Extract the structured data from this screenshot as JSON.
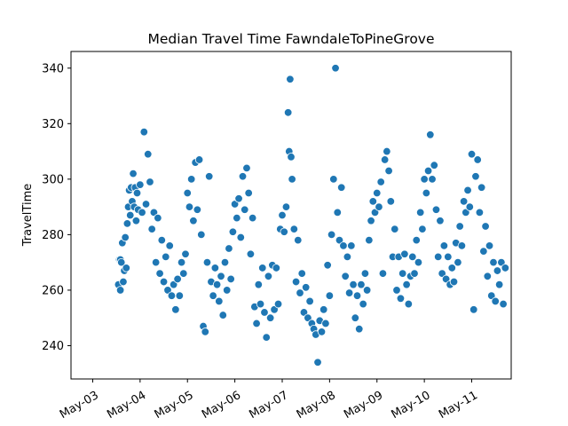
{
  "chart_data": {
    "type": "scatter",
    "title": "Median Travel Time FawndaleToPineGrove",
    "xlabel": "",
    "ylabel": "TravelTime",
    "x_axis": "date",
    "xlim": [
      "2016-05-02T13:00",
      "2016-05-11T20:00"
    ],
    "ylim": [
      228,
      346
    ],
    "x_ticks": [
      "2016-05-03",
      "2016-05-04",
      "2016-05-05",
      "2016-05-06",
      "2016-05-07",
      "2016-05-08",
      "2016-05-09",
      "2016-05-10",
      "2016-05-11"
    ],
    "x_tick_labels": [
      "May-03",
      "May-04",
      "May-05",
      "May-06",
      "May-07",
      "May-08",
      "May-09",
      "May-10",
      "May-11"
    ],
    "y_ticks": [
      240,
      260,
      280,
      300,
      320,
      340
    ],
    "y_tick_labels": [
      "240",
      "260",
      "280",
      "300",
      "320",
      "340"
    ],
    "marker_color": "#1f77b4",
    "marker_edge": "#ffffff",
    "grid": false,
    "legend": "none",
    "points": [
      [
        "2016-05-03T13:00",
        262
      ],
      [
        "2016-05-03T13:30",
        271
      ],
      [
        "2016-05-03T14:00",
        260
      ],
      [
        "2016-05-03T14:00",
        271
      ],
      [
        "2016-05-03T14:30",
        270
      ],
      [
        "2016-05-03T15:00",
        277
      ],
      [
        "2016-05-03T15:30",
        263
      ],
      [
        "2016-05-03T16:00",
        267
      ],
      [
        "2016-05-03T16:30",
        279
      ],
      [
        "2016-05-03T17:00",
        268
      ],
      [
        "2016-05-03T17:30",
        284
      ],
      [
        "2016-05-03T18:00",
        290
      ],
      [
        "2016-05-03T18:30",
        296
      ],
      [
        "2016-05-03T19:00",
        287
      ],
      [
        "2016-05-03T19:30",
        297
      ],
      [
        "2016-05-03T20:00",
        292
      ],
      [
        "2016-05-03T20:30",
        302
      ],
      [
        "2016-05-03T21:00",
        290
      ],
      [
        "2016-05-03T21:30",
        297
      ],
      [
        "2016-05-03T22:00",
        285
      ],
      [
        "2016-05-03T22:30",
        295
      ],
      [
        "2016-05-03T23:00",
        289
      ],
      [
        "2016-05-04T00:00",
        298
      ],
      [
        "2016-05-04T01:00",
        288
      ],
      [
        "2016-05-04T02:00",
        317
      ],
      [
        "2016-05-04T03:00",
        291
      ],
      [
        "2016-05-04T04:00",
        309
      ],
      [
        "2016-05-04T05:00",
        299
      ],
      [
        "2016-05-04T06:00",
        282
      ],
      [
        "2016-05-04T07:00",
        288
      ],
      [
        "2016-05-04T08:00",
        270
      ],
      [
        "2016-05-04T09:00",
        286
      ],
      [
        "2016-05-04T10:00",
        266
      ],
      [
        "2016-05-04T11:00",
        278
      ],
      [
        "2016-05-04T12:00",
        263
      ],
      [
        "2016-05-04T13:00",
        272
      ],
      [
        "2016-05-04T14:00",
        260
      ],
      [
        "2016-05-04T15:00",
        276
      ],
      [
        "2016-05-04T16:00",
        258
      ],
      [
        "2016-05-04T17:00",
        262
      ],
      [
        "2016-05-04T18:00",
        253
      ],
      [
        "2016-05-04T19:00",
        264
      ],
      [
        "2016-05-04T20:00",
        258
      ],
      [
        "2016-05-04T21:00",
        270
      ],
      [
        "2016-05-04T22:00",
        266
      ],
      [
        "2016-05-04T23:00",
        273
      ],
      [
        "2016-05-05T00:00",
        295
      ],
      [
        "2016-05-05T01:00",
        290
      ],
      [
        "2016-05-05T02:00",
        300
      ],
      [
        "2016-05-05T03:00",
        285
      ],
      [
        "2016-05-05T04:00",
        306
      ],
      [
        "2016-05-05T05:00",
        289
      ],
      [
        "2016-05-05T06:00",
        307
      ],
      [
        "2016-05-05T07:00",
        280
      ],
      [
        "2016-05-05T08:00",
        247
      ],
      [
        "2016-05-05T09:00",
        245
      ],
      [
        "2016-05-05T10:00",
        270
      ],
      [
        "2016-05-05T11:00",
        301
      ],
      [
        "2016-05-05T12:00",
        263
      ],
      [
        "2016-05-05T13:00",
        258
      ],
      [
        "2016-05-05T14:00",
        268
      ],
      [
        "2016-05-05T15:00",
        262
      ],
      [
        "2016-05-05T16:00",
        256
      ],
      [
        "2016-05-05T17:00",
        265
      ],
      [
        "2016-05-05T18:00",
        251
      ],
      [
        "2016-05-05T19:00",
        270
      ],
      [
        "2016-05-05T20:00",
        260
      ],
      [
        "2016-05-05T21:00",
        275
      ],
      [
        "2016-05-05T22:00",
        264
      ],
      [
        "2016-05-05T23:00",
        281
      ],
      [
        "2016-05-06T00:00",
        291
      ],
      [
        "2016-05-06T01:00",
        286
      ],
      [
        "2016-05-06T02:00",
        293
      ],
      [
        "2016-05-06T03:00",
        279
      ],
      [
        "2016-05-06T04:00",
        301
      ],
      [
        "2016-05-06T05:00",
        289
      ],
      [
        "2016-05-06T06:00",
        304
      ],
      [
        "2016-05-06T07:00",
        295
      ],
      [
        "2016-05-06T08:00",
        273
      ],
      [
        "2016-05-06T09:00",
        286
      ],
      [
        "2016-05-06T10:00",
        254
      ],
      [
        "2016-05-06T11:00",
        248
      ],
      [
        "2016-05-06T12:00",
        262
      ],
      [
        "2016-05-06T13:00",
        255
      ],
      [
        "2016-05-06T14:00",
        268
      ],
      [
        "2016-05-06T15:00",
        252
      ],
      [
        "2016-05-06T16:00",
        243
      ],
      [
        "2016-05-06T17:00",
        265
      ],
      [
        "2016-05-06T18:00",
        250
      ],
      [
        "2016-05-06T19:00",
        269
      ],
      [
        "2016-05-06T20:00",
        253
      ],
      [
        "2016-05-06T21:00",
        268
      ],
      [
        "2016-05-06T22:00",
        255
      ],
      [
        "2016-05-06T23:00",
        282
      ],
      [
        "2016-05-07T00:00",
        287
      ],
      [
        "2016-05-07T01:00",
        281
      ],
      [
        "2016-05-07T02:00",
        290
      ],
      [
        "2016-05-07T03:00",
        324
      ],
      [
        "2016-05-07T03:30",
        310
      ],
      [
        "2016-05-07T04:00",
        336
      ],
      [
        "2016-05-07T04:30",
        308
      ],
      [
        "2016-05-07T05:00",
        300
      ],
      [
        "2016-05-07T06:00",
        282
      ],
      [
        "2016-05-07T07:00",
        263
      ],
      [
        "2016-05-07T08:00",
        278
      ],
      [
        "2016-05-07T09:00",
        259
      ],
      [
        "2016-05-07T10:00",
        266
      ],
      [
        "2016-05-07T11:00",
        252
      ],
      [
        "2016-05-07T12:00",
        261
      ],
      [
        "2016-05-07T13:00",
        250
      ],
      [
        "2016-05-07T14:00",
        256
      ],
      [
        "2016-05-07T15:00",
        248
      ],
      [
        "2016-05-07T16:00",
        246
      ],
      [
        "2016-05-07T17:00",
        244
      ],
      [
        "2016-05-07T18:00",
        234
      ],
      [
        "2016-05-07T19:00",
        249
      ],
      [
        "2016-05-07T20:00",
        245
      ],
      [
        "2016-05-07T21:00",
        253
      ],
      [
        "2016-05-07T22:00",
        248
      ],
      [
        "2016-05-07T23:00",
        269
      ],
      [
        "2016-05-08T00:00",
        258
      ],
      [
        "2016-05-08T01:00",
        280
      ],
      [
        "2016-05-08T02:00",
        300
      ],
      [
        "2016-05-08T03:00",
        340
      ],
      [
        "2016-05-08T04:00",
        288
      ],
      [
        "2016-05-08T05:00",
        278
      ],
      [
        "2016-05-08T06:00",
        297
      ],
      [
        "2016-05-08T07:00",
        276
      ],
      [
        "2016-05-08T08:00",
        265
      ],
      [
        "2016-05-08T09:00",
        272
      ],
      [
        "2016-05-08T10:00",
        259
      ],
      [
        "2016-05-08T11:00",
        276
      ],
      [
        "2016-05-08T12:00",
        262
      ],
      [
        "2016-05-08T13:00",
        250
      ],
      [
        "2016-05-08T14:00",
        258
      ],
      [
        "2016-05-08T15:00",
        246
      ],
      [
        "2016-05-08T16:00",
        262
      ],
      [
        "2016-05-08T17:00",
        255
      ],
      [
        "2016-05-08T18:00",
        266
      ],
      [
        "2016-05-08T19:00",
        260
      ],
      [
        "2016-05-08T20:00",
        278
      ],
      [
        "2016-05-08T21:00",
        285
      ],
      [
        "2016-05-08T22:00",
        292
      ],
      [
        "2016-05-08T23:00",
        288
      ],
      [
        "2016-05-09T00:00",
        295
      ],
      [
        "2016-05-09T01:00",
        290
      ],
      [
        "2016-05-09T02:00",
        299
      ],
      [
        "2016-05-09T03:00",
        266
      ],
      [
        "2016-05-09T04:00",
        307
      ],
      [
        "2016-05-09T05:00",
        310
      ],
      [
        "2016-05-09T06:00",
        303
      ],
      [
        "2016-05-09T07:00",
        292
      ],
      [
        "2016-05-09T08:00",
        272
      ],
      [
        "2016-05-09T09:00",
        282
      ],
      [
        "2016-05-09T10:00",
        260
      ],
      [
        "2016-05-09T11:00",
        272
      ],
      [
        "2016-05-09T12:00",
        257
      ],
      [
        "2016-05-09T13:00",
        266
      ],
      [
        "2016-05-09T14:00",
        273
      ],
      [
        "2016-05-09T15:00",
        262
      ],
      [
        "2016-05-09T16:00",
        255
      ],
      [
        "2016-05-09T17:00",
        265
      ],
      [
        "2016-05-09T18:00",
        272
      ],
      [
        "2016-05-09T19:00",
        266
      ],
      [
        "2016-05-09T20:00",
        278
      ],
      [
        "2016-05-09T21:00",
        270
      ],
      [
        "2016-05-09T22:00",
        288
      ],
      [
        "2016-05-09T23:00",
        282
      ],
      [
        "2016-05-10T00:00",
        300
      ],
      [
        "2016-05-10T01:00",
        295
      ],
      [
        "2016-05-10T02:00",
        303
      ],
      [
        "2016-05-10T03:00",
        316
      ],
      [
        "2016-05-10T04:00",
        300
      ],
      [
        "2016-05-10T05:00",
        305
      ],
      [
        "2016-05-10T06:00",
        289
      ],
      [
        "2016-05-10T07:00",
        272
      ],
      [
        "2016-05-10T08:00",
        285
      ],
      [
        "2016-05-10T09:00",
        266
      ],
      [
        "2016-05-10T10:00",
        276
      ],
      [
        "2016-05-10T11:00",
        264
      ],
      [
        "2016-05-10T12:00",
        272
      ],
      [
        "2016-05-10T13:00",
        262
      ],
      [
        "2016-05-10T14:00",
        268
      ],
      [
        "2016-05-10T15:00",
        263
      ],
      [
        "2016-05-10T16:00",
        277
      ],
      [
        "2016-05-10T17:00",
        270
      ],
      [
        "2016-05-10T18:00",
        283
      ],
      [
        "2016-05-10T19:00",
        276
      ],
      [
        "2016-05-10T20:00",
        292
      ],
      [
        "2016-05-10T21:00",
        288
      ],
      [
        "2016-05-10T22:00",
        296
      ],
      [
        "2016-05-10T23:00",
        290
      ],
      [
        "2016-05-11T00:00",
        309
      ],
      [
        "2016-05-11T01:00",
        253
      ],
      [
        "2016-05-11T02:00",
        301
      ],
      [
        "2016-05-11T03:00",
        307
      ],
      [
        "2016-05-11T04:00",
        288
      ],
      [
        "2016-05-11T05:00",
        297
      ],
      [
        "2016-05-11T06:00",
        274
      ],
      [
        "2016-05-11T07:00",
        283
      ],
      [
        "2016-05-11T08:00",
        265
      ],
      [
        "2016-05-11T09:00",
        276
      ],
      [
        "2016-05-11T10:00",
        258
      ],
      [
        "2016-05-11T11:00",
        270
      ],
      [
        "2016-05-11T12:00",
        256
      ],
      [
        "2016-05-11T13:00",
        267
      ],
      [
        "2016-05-11T14:00",
        262
      ],
      [
        "2016-05-11T15:00",
        270
      ],
      [
        "2016-05-11T16:00",
        255
      ],
      [
        "2016-05-11T17:00",
        268
      ]
    ]
  }
}
